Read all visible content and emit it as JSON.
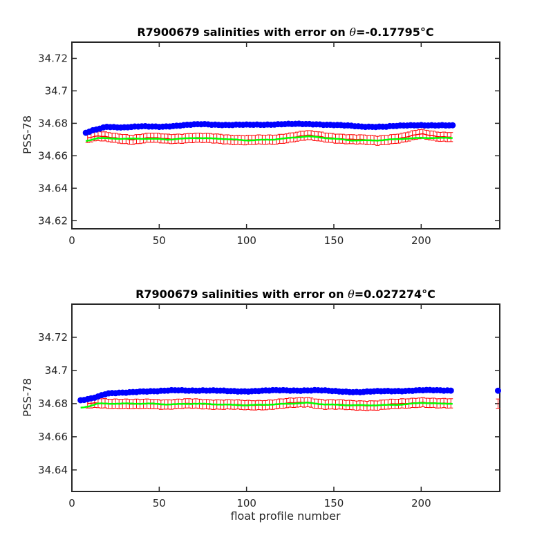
{
  "xlabel": "float profile number",
  "colors": {
    "blue": "#0000ff",
    "red": "#ff0000",
    "green": "#00ff00",
    "axes": "#262626"
  },
  "chart_data": [
    {
      "type": "scatter",
      "title_prefix": "R7900679 salinities with error on ",
      "title_theta": "θ",
      "title_value": "=-0.17795",
      "title_unit": "°C",
      "ylabel": "PSS-78",
      "xlim": [
        0,
        245
      ],
      "ylim": [
        34.615,
        34.73
      ],
      "xticks": [
        0,
        50,
        100,
        150,
        200
      ],
      "yticks": [
        34.62,
        34.64,
        34.66,
        34.68,
        34.7,
        34.72
      ],
      "ytick_labels": [
        "34.62",
        "34.64",
        "34.66",
        "34.68",
        "34.7",
        "34.72"
      ],
      "series": [
        {
          "role": "blue_points",
          "x_start": 8,
          "x_end": 218,
          "x_step": 2,
          "knots_x": [
            8,
            12,
            20,
            30,
            40,
            50,
            60,
            75,
            90,
            100,
            120,
            140,
            150,
            165,
            180,
            200,
            218
          ],
          "knots_y": [
            34.674,
            34.6755,
            34.678,
            34.6775,
            34.678,
            34.678,
            34.6785,
            34.6795,
            34.679,
            34.679,
            34.6795,
            34.6795,
            34.679,
            34.678,
            34.678,
            34.679,
            34.6785
          ]
        },
        {
          "role": "red_error_bars",
          "x_start": 9,
          "x_end": 218,
          "x_step": 2,
          "err": 0.0028,
          "knots_x": [
            9,
            15,
            25,
            35,
            45,
            55,
            70,
            85,
            100,
            115,
            135,
            145,
            160,
            175,
            190,
            200,
            210,
            218
          ],
          "knots_y": [
            34.671,
            34.672,
            34.671,
            34.67,
            34.671,
            34.6705,
            34.671,
            34.6705,
            34.6695,
            34.67,
            34.6725,
            34.6715,
            34.67,
            34.6695,
            34.671,
            34.6735,
            34.672,
            34.6715
          ]
        },
        {
          "role": "green_line",
          "x_start": 8,
          "x_end": 218,
          "x_step": 1,
          "knots_x": [
            8,
            15,
            25,
            35,
            45,
            55,
            70,
            85,
            100,
            115,
            135,
            145,
            160,
            175,
            190,
            200,
            210,
            218
          ],
          "knots_y": [
            34.669,
            34.671,
            34.6705,
            34.6705,
            34.6705,
            34.67,
            34.671,
            34.6705,
            34.6695,
            34.67,
            34.672,
            34.671,
            34.6695,
            34.6695,
            34.6705,
            34.671,
            34.671,
            34.671
          ]
        }
      ]
    },
    {
      "type": "scatter",
      "title_prefix": "R7900679 salinities with error on ",
      "title_theta": "θ",
      "title_value": "=0.027274",
      "title_unit": "°C",
      "ylabel": "PSS-78",
      "xlim": [
        0,
        245
      ],
      "ylim": [
        34.627,
        34.74
      ],
      "xticks": [
        0,
        50,
        100,
        150,
        200
      ],
      "yticks": [
        34.64,
        34.66,
        34.68,
        34.7,
        34.72
      ],
      "ytick_labels": [
        "34.64",
        "34.66",
        "34.68",
        "34.7",
        "34.72"
      ],
      "series": [
        {
          "role": "blue_points",
          "x_start": 5,
          "x_end": 218,
          "x_step": 2,
          "knots_x": [
            5,
            12,
            20,
            30,
            40,
            50,
            60,
            75,
            90,
            100,
            120,
            140,
            150,
            165,
            180,
            200,
            218
          ],
          "knots_y": [
            34.682,
            34.6835,
            34.686,
            34.6865,
            34.6875,
            34.6875,
            34.688,
            34.688,
            34.6875,
            34.6875,
            34.688,
            34.688,
            34.6875,
            34.687,
            34.6875,
            34.688,
            34.688
          ],
          "extra_points": [
            [
              244,
              34.6878
            ]
          ]
        },
        {
          "role": "red_error_bars",
          "x_start": 9,
          "x_end": 218,
          "x_step": 2,
          "err": 0.0028,
          "knots_x": [
            9,
            15,
            25,
            35,
            45,
            55,
            70,
            85,
            100,
            115,
            135,
            145,
            160,
            175,
            190,
            200,
            210,
            218
          ],
          "knots_y": [
            34.68,
            34.6805,
            34.68,
            34.6795,
            34.68,
            34.6795,
            34.68,
            34.6795,
            34.679,
            34.6795,
            34.681,
            34.6795,
            34.679,
            34.679,
            34.68,
            34.681,
            34.68,
            34.68
          ],
          "extra_points": [
            [
              244,
              34.68
            ]
          ]
        },
        {
          "role": "green_line",
          "x_start": 5,
          "x_end": 218,
          "x_step": 1,
          "knots_x": [
            5,
            10,
            15,
            25,
            35,
            45,
            55,
            70,
            85,
            100,
            115,
            135,
            145,
            160,
            175,
            190,
            200,
            210,
            218
          ],
          "knots_y": [
            34.6775,
            34.6785,
            34.68,
            34.68,
            34.68,
            34.68,
            34.6795,
            34.68,
            34.6795,
            34.679,
            34.6795,
            34.6805,
            34.6795,
            34.679,
            34.679,
            34.6795,
            34.6805,
            34.68,
            34.68
          ]
        }
      ]
    }
  ]
}
